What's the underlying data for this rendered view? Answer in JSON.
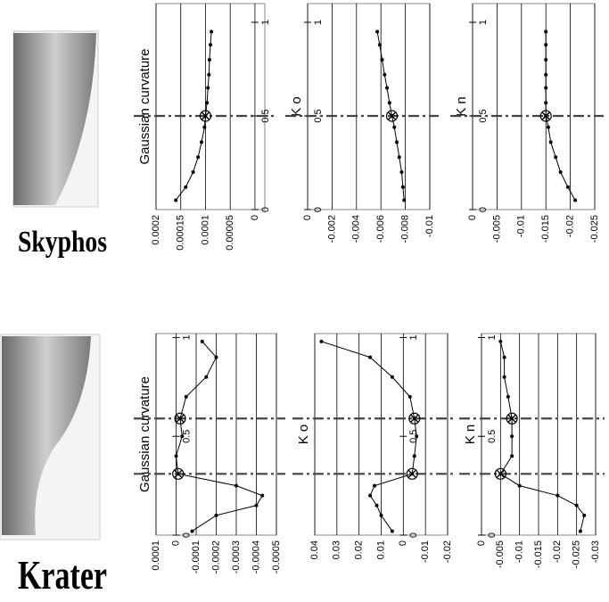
{
  "vessels": [
    "Skyphos",
    "Krater"
  ],
  "chart_data": [
    {
      "type": "line",
      "title": "Gaussian curvature",
      "color": "#000000",
      "grid": true,
      "x": [
        0.05,
        0.12,
        0.2,
        0.28,
        0.36,
        0.44,
        0.5,
        0.57,
        0.65,
        0.72,
        0.8,
        0.88,
        0.95
      ],
      "values": [
        0.00016,
        0.00014,
        0.000125,
        0.000115,
        0.000108,
        0.000102,
        0.0001,
        9.7e-05,
        9.5e-05,
        9.3e-05,
        9.2e-05,
        9e-05,
        8.8e-05
      ],
      "xlim": [
        0,
        1.1
      ],
      "ylim": [
        0.0002,
        -2e-05
      ],
      "xticks": [
        0,
        0.5,
        1
      ],
      "yticks": [
        0.0002,
        0.00015,
        0.0001,
        5e-05,
        0
      ],
      "markers": [
        0.5
      ]
    },
    {
      "type": "line",
      "title": "K o",
      "color": "#000000",
      "grid": true,
      "x": [
        0.05,
        0.12,
        0.2,
        0.28,
        0.36,
        0.44,
        0.5,
        0.57,
        0.65,
        0.72,
        0.8,
        0.88,
        0.95
      ],
      "values": [
        -0.0079,
        -0.0078,
        -0.0077,
        -0.0075,
        -0.0073,
        -0.0071,
        -0.0069,
        -0.0067,
        -0.0065,
        -0.0063,
        -0.0061,
        -0.0059,
        -0.0057
      ],
      "xlim": [
        0,
        1.1
      ],
      "ylim": [
        0,
        -0.01
      ],
      "xticks": [
        0,
        0.5,
        1
      ],
      "yticks": [
        0,
        -0.002,
        -0.004,
        -0.006,
        -0.008,
        -0.01
      ],
      "markers": [
        0.5
      ]
    },
    {
      "type": "line",
      "title": "K n",
      "color": "#000000",
      "grid": true,
      "x": [
        0.05,
        0.12,
        0.2,
        0.28,
        0.36,
        0.44,
        0.5,
        0.57,
        0.65,
        0.72,
        0.8,
        0.88,
        0.95
      ],
      "values": [
        -0.021,
        -0.0195,
        -0.018,
        -0.017,
        -0.016,
        -0.0155,
        -0.015,
        -0.015,
        -0.015,
        -0.015,
        -0.015,
        -0.015,
        -0.015
      ],
      "xlim": [
        0,
        1.1
      ],
      "ylim": [
        0,
        -0.025
      ],
      "xticks": [
        0,
        0.5,
        1
      ],
      "yticks": [
        0,
        -0.005,
        -0.01,
        -0.015,
        -0.02,
        -0.025
      ],
      "markers": [
        0.5
      ]
    },
    {
      "type": "line",
      "title": "Gaussian curvature",
      "color": "#000000",
      "grid": true,
      "x": [
        0.02,
        0.1,
        0.15,
        0.2,
        0.25,
        0.31,
        0.4,
        0.5,
        0.59,
        0.7,
        0.8,
        0.9,
        0.98
      ],
      "values": [
        -8e-05,
        -0.0002,
        -0.0004,
        -0.00043,
        -0.0003,
        -1e-05,
        0,
        -3e-05,
        -2e-05,
        -5e-05,
        -0.00015,
        -0.0002,
        -0.00013
      ],
      "xlim": [
        0,
        1.02
      ],
      "ylim": [
        0.0001,
        -0.0005
      ],
      "xticks": [
        0,
        0.5,
        1
      ],
      "yticks": [
        0.0001,
        0,
        -0.0001,
        -0.0002,
        -0.0003,
        -0.0004,
        -0.0005
      ],
      "markers": [
        0.31,
        0.59
      ]
    },
    {
      "type": "line",
      "title": "K o",
      "color": "#000000",
      "grid": true,
      "x": [
        0.02,
        0.1,
        0.15,
        0.2,
        0.25,
        0.31,
        0.4,
        0.5,
        0.59,
        0.7,
        0.8,
        0.9,
        0.98
      ],
      "values": [
        0.005,
        0.01,
        0.012,
        0.015,
        0.013,
        -0.004,
        -0.005,
        -0.006,
        -0.005,
        -0.003,
        0.005,
        0.015,
        0.037
      ],
      "xlim": [
        0,
        1.02
      ],
      "ylim": [
        0.04,
        -0.02
      ],
      "xticks": [
        0,
        0.5,
        1
      ],
      "yticks": [
        0.04,
        0.03,
        0.02,
        0.01,
        0,
        -0.01,
        -0.02
      ],
      "markers": [
        0.31,
        0.59
      ]
    },
    {
      "type": "line",
      "title": "K n",
      "color": "#000000",
      "grid": true,
      "x": [
        0.02,
        0.1,
        0.15,
        0.2,
        0.25,
        0.31,
        0.4,
        0.5,
        0.59,
        0.7,
        0.8,
        0.9,
        0.98
      ],
      "values": [
        -0.026,
        -0.027,
        -0.025,
        -0.02,
        -0.01,
        -0.005,
        -0.008,
        -0.008,
        -0.008,
        -0.007,
        -0.006,
        -0.006,
        -0.005
      ],
      "xlim": [
        0,
        1.02
      ],
      "ylim": [
        0,
        -0.03
      ],
      "xticks": [
        0,
        0.5,
        1
      ],
      "yticks": [
        0,
        -0.005,
        -0.01,
        -0.015,
        -0.02,
        -0.025,
        -0.03
      ],
      "markers": [
        0.31,
        0.59
      ]
    }
  ]
}
